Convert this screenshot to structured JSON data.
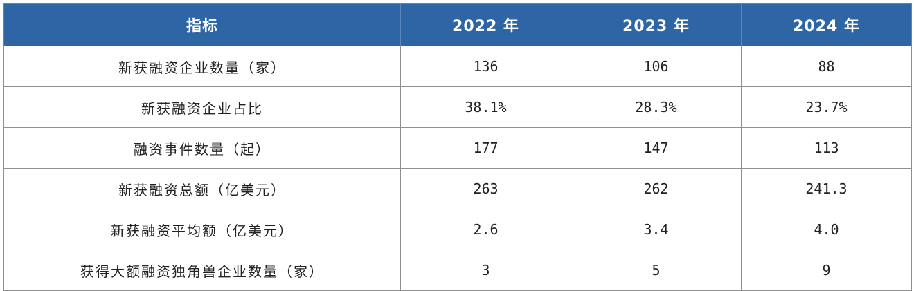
{
  "table": {
    "headers": [
      "指标",
      "2022 年",
      "2023 年",
      "2024 年"
    ],
    "rows": [
      {
        "label": "新获融资企业数量（家）",
        "v2022": "136",
        "v2023": "106",
        "v2024": "88"
      },
      {
        "label": "新获融资企业占比",
        "v2022": "38.1%",
        "v2023": "28.3%",
        "v2024": "23.7%"
      },
      {
        "label": "融资事件数量（起）",
        "v2022": "177",
        "v2023": "147",
        "v2024": "113"
      },
      {
        "label": "新获融资总额（亿美元）",
        "v2022": "263",
        "v2023": "262",
        "v2024": "241.3"
      },
      {
        "label": "新获融资平均额（亿美元）",
        "v2022": "2.6",
        "v2023": "3.4",
        "v2024": "4.0"
      },
      {
        "label": "获得大额融资独角兽企业数量（家）",
        "v2022": "3",
        "v2023": "5",
        "v2024": "9"
      }
    ]
  },
  "colors": {
    "header_bg": "#2e65a5",
    "header_text": "#ffffff",
    "border": "#8f8f8f"
  }
}
